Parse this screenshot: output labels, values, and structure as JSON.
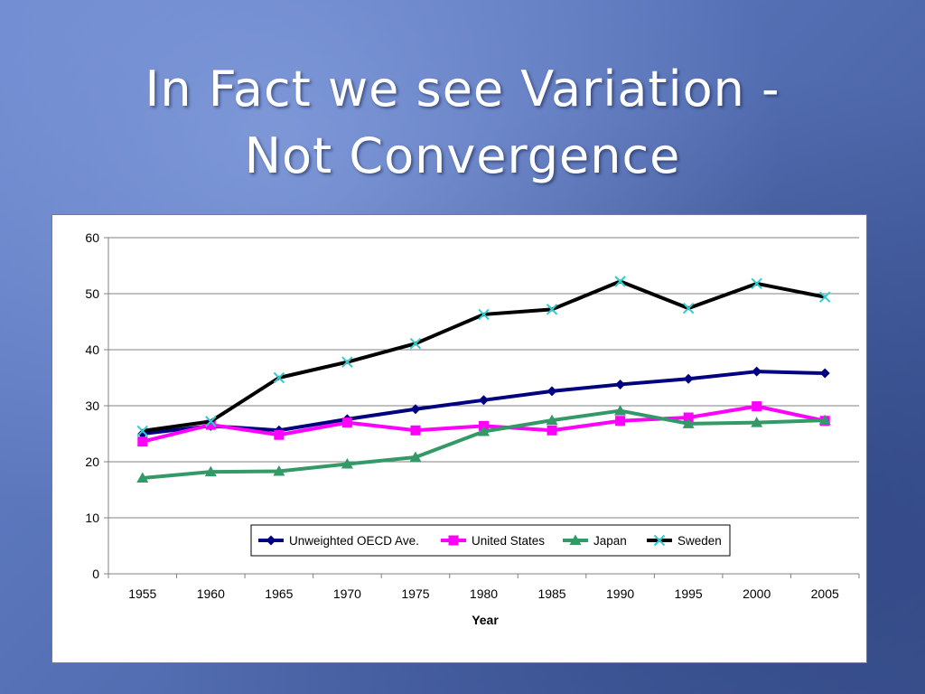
{
  "slide": {
    "title_line1": "In Fact we see Variation -",
    "title_line2": "Not Convergence"
  },
  "chart_data": {
    "type": "line",
    "title": "",
    "xlabel": "Year",
    "ylabel": "",
    "ylim": [
      0,
      60
    ],
    "yticks": [
      0,
      10,
      20,
      30,
      40,
      50,
      60
    ],
    "categories": [
      "1955",
      "1960",
      "1965",
      "1970",
      "1975",
      "1980",
      "1985",
      "1990",
      "1995",
      "2000",
      "2005"
    ],
    "grid": "horizontal",
    "legend_position": "bottom-center inside plot",
    "series": [
      {
        "name": "Unweighted OECD Ave.",
        "color": "#000080",
        "marker": "diamond",
        "values": [
          25.0,
          26.4,
          25.6,
          27.6,
          29.4,
          31.0,
          32.6,
          33.8,
          34.8,
          36.1,
          35.8
        ]
      },
      {
        "name": "United States",
        "color": "#ff00ff",
        "marker": "square",
        "values": [
          23.6,
          26.6,
          24.8,
          27.0,
          25.6,
          26.4,
          25.6,
          27.3,
          27.9,
          29.9,
          27.3
        ]
      },
      {
        "name": "Japan",
        "color": "#339966",
        "marker": "triangle",
        "values": [
          17.1,
          18.2,
          18.3,
          19.6,
          20.8,
          25.4,
          27.4,
          29.1,
          26.8,
          27.0,
          27.4
        ]
      },
      {
        "name": "Sweden",
        "color": "#000000",
        "marker": "x",
        "marker_color": "#33cccc",
        "values": [
          25.5,
          27.2,
          35.0,
          37.8,
          41.1,
          46.3,
          47.2,
          52.2,
          47.4,
          51.8,
          49.4
        ]
      }
    ]
  }
}
